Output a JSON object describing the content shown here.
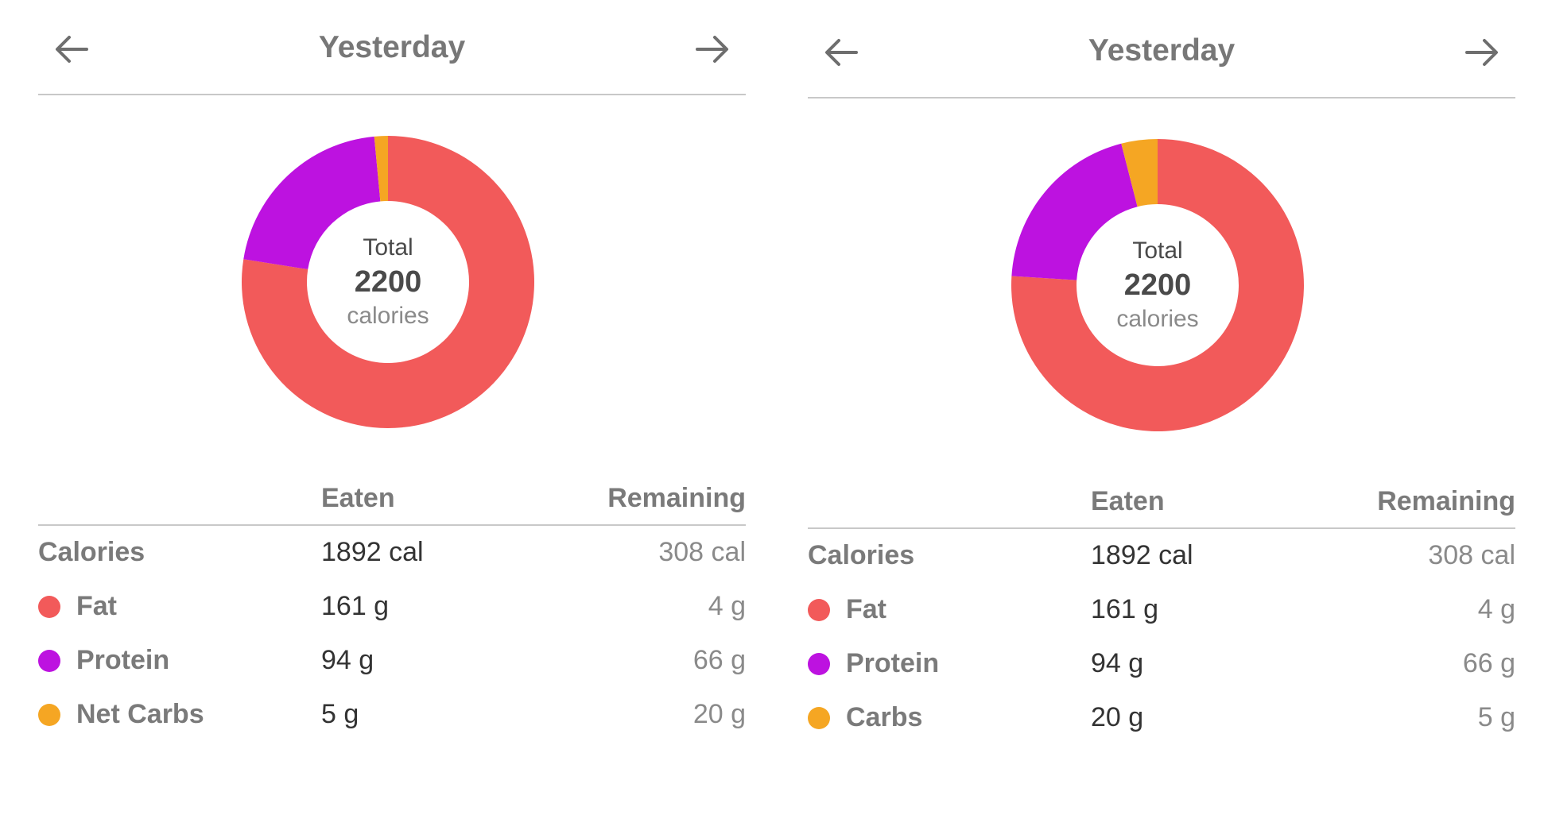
{
  "colors": {
    "fat": "#f25a5a",
    "protein": "#bd12e0",
    "carbs": "#f5a623"
  },
  "panels": [
    {
      "header": {
        "title": "Yesterday",
        "prev_icon": "arrow-left-icon",
        "next_icon": "arrow-right-icon"
      },
      "donut": {
        "total_label": "Total",
        "total_value": "2200",
        "total_unit": "calories",
        "segments": [
          {
            "key": "fat",
            "fraction": 0.775
          },
          {
            "key": "protein",
            "fraction": 0.21
          },
          {
            "key": "carbs",
            "fraction": 0.015
          }
        ]
      },
      "table": {
        "col_eaten": "Eaten",
        "col_remaining": "Remaining",
        "rows": [
          {
            "label": "Calories",
            "eaten": "1892 cal",
            "remaining": "308 cal",
            "dot": ""
          },
          {
            "label": "Fat",
            "eaten": "161 g",
            "remaining": "4 g",
            "dot": "fat"
          },
          {
            "label": "Protein",
            "eaten": "94 g",
            "remaining": "66 g",
            "dot": "protein"
          },
          {
            "label": "Net Carbs",
            "eaten": "5 g",
            "remaining": "20 g",
            "dot": "carbs"
          }
        ]
      }
    },
    {
      "header": {
        "title": "Yesterday",
        "prev_icon": "arrow-left-icon",
        "next_icon": "arrow-right-icon"
      },
      "donut": {
        "total_label": "Total",
        "total_value": "2200",
        "total_unit": "calories",
        "segments": [
          {
            "key": "fat",
            "fraction": 0.76
          },
          {
            "key": "protein",
            "fraction": 0.2
          },
          {
            "key": "carbs",
            "fraction": 0.04
          }
        ]
      },
      "table": {
        "col_eaten": "Eaten",
        "col_remaining": "Remaining",
        "rows": [
          {
            "label": "Calories",
            "eaten": "1892 cal",
            "remaining": "308 cal",
            "dot": ""
          },
          {
            "label": "Fat",
            "eaten": "161 g",
            "remaining": "4 g",
            "dot": "fat"
          },
          {
            "label": "Protein",
            "eaten": "94 g",
            "remaining": "66 g",
            "dot": "protein"
          },
          {
            "label": "Carbs",
            "eaten": "20 g",
            "remaining": "5 g",
            "dot": "carbs"
          }
        ]
      }
    }
  ]
}
